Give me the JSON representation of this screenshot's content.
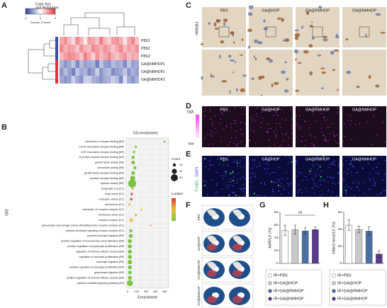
{
  "panel_labels": [
    "A",
    "B",
    "C",
    "D",
    "E",
    "F",
    "G",
    "H"
  ],
  "heatmap": {
    "key_title": [
      "Color Key",
      "and Histogram"
    ],
    "key_axis": "Column Z-Score",
    "key_ticks": [
      -2,
      0,
      2
    ],
    "rows": [
      "PBS1",
      "PBS2",
      "PBS3",
      "GA@NMHOP1",
      "GA@NMHOP2",
      "GA@NMHOP3"
    ],
    "values": [
      [
        0.9,
        1.1,
        0.7,
        0.4,
        1.2,
        0.8,
        0.2,
        1.0,
        0.9,
        0.6,
        1.3,
        0.7,
        0.5,
        1.0,
        1.1,
        0.8,
        0.3,
        0.9,
        1.2,
        0.6
      ],
      [
        1.2,
        0.8,
        1.0,
        0.9,
        0.6,
        1.1,
        0.8,
        0.7,
        1.2,
        1.0,
        0.8,
        1.1,
        0.9,
        0.6,
        0.9,
        1.2,
        0.7,
        1.0,
        0.8,
        1.1
      ],
      [
        0.7,
        1.0,
        1.2,
        1.1,
        0.9,
        0.6,
        1.3,
        0.9,
        0.5,
        1.1,
        0.7,
        0.9,
        1.2,
        0.8,
        0.6,
        0.9,
        1.1,
        0.7,
        0.9,
        0.8
      ],
      [
        -0.8,
        -1.1,
        -0.9,
        -0.6,
        -1.2,
        -0.7,
        -1.0,
        -0.9,
        -0.8,
        -1.3,
        -0.6,
        -1.0,
        -1.1,
        -0.7,
        -0.9,
        -0.8,
        -1.2,
        -0.6,
        -1.0,
        -0.9
      ],
      [
        -1.1,
        -0.7,
        -1.0,
        -1.3,
        -0.6,
        -0.9,
        -0.8,
        -1.2,
        -1.0,
        -0.5,
        -1.1,
        -0.8,
        -0.7,
        -1.2,
        -1.0,
        -0.9,
        -0.6,
        -1.1,
        -0.8,
        -1.0
      ],
      [
        -0.9,
        -1.1,
        -1.0,
        -0.5,
        -0.9,
        -1.1,
        -0.5,
        -0.5,
        -0.8,
        -0.9,
        -1.1,
        -0.9,
        -0.8,
        -0.5,
        -0.7,
        -1.2,
        -0.3,
        -0.9,
        -1.1,
        -0.8
      ]
    ]
  },
  "go": {
    "title": "GO-enrichment",
    "y_label": "GO",
    "x_label": "Enrichment",
    "xlim": [
      0,
      430
    ],
    "xticks": [
      0,
      100,
      200,
      300,
      400
    ],
    "terms": [
      "interleukin-2 receptor binding [MF]",
      "CXCR chemokine receptor binding [MF]",
      "CCR chemokine receptor binding [MF]",
      "G protein-coupled receptor binding [MF]",
      "growth factor activity [MF]",
      "chemokine activity [MF]",
      "growth factor receptor binding [MF]",
      "cytokine receptor binding [MF]",
      "cytokine activity [MF]",
      "phagocytic cup [CC]",
      "Golgi lumen [CC]",
      "endocytic vesicle [CC]",
      "perinucleon [CC]",
      "interleukin-12 receptor complex [CC]",
      "endosome lumen [CC]",
      "receptor complex [CC]",
      "granulocyte macrophage colony-stimulating factor receptor complex [CC]",
      "plasma membrane signaling receptor complex [CC]",
      "myeloid leukocyte migration [BP]",
      "positive regulation of mononuclear cell proliferation [BP]",
      "positive regulation of lymphocyte proliferation [BP]",
      "regulation of immune effector process [BP]",
      "regulation of leukocyte proliferation [BP]",
      "leukocyte migration [BP]",
      "positive regulation of leukocyte proliferation [BP]",
      "granulocyte migration [BP]",
      "positive regulation of immune effector process [BP]",
      "cytokine-mediated signaling pathway [BP]"
    ],
    "enrichment": [
      400,
      90,
      70,
      60,
      60,
      80,
      60,
      55,
      50,
      55,
      45,
      40,
      20,
      150,
      90,
      40,
      250,
      35,
      35,
      25,
      25,
      25,
      25,
      25,
      25,
      25,
      25,
      25
    ],
    "count": [
      4,
      6,
      6,
      10,
      12,
      10,
      12,
      20,
      35,
      5,
      6,
      6,
      4,
      4,
      5,
      12,
      3,
      10,
      14,
      14,
      14,
      14,
      14,
      16,
      14,
      12,
      14,
      24
    ],
    "colors": [
      "#7cc242",
      "#7cc242",
      "#7cc242",
      "#7cc242",
      "#7cc242",
      "#7cc242",
      "#7cc242",
      "#7cc242",
      "#7cc242",
      "#e8a23a",
      "#d94a2e",
      "#d94a2e",
      "#e8a23a",
      "#e8c23a",
      "#e8a23a",
      "#e8c23a",
      "#e8a23a",
      "#7cc242",
      "#7cc242",
      "#7cc242",
      "#7cc242",
      "#7cc242",
      "#7cc242",
      "#7cc242",
      "#7cc242",
      "#7cc242",
      "#7cc242",
      "#7cc242"
    ],
    "size_legend_title": "Count",
    "size_legend": [
      10,
      20,
      30
    ],
    "color_legend_title": "p.adjust"
  },
  "micrographs": {
    "columns": [
      "PBS",
      "GA@HOP",
      "GA@RMHOP",
      "GA@NMHOP"
    ],
    "c_label": "HMGB1",
    "d_high": "high",
    "d_low": "low",
    "e_label": [
      "TUNEL",
      "/DAPI"
    ]
  },
  "groups": {
    "names": [
      "IR+PBS",
      "IR+GA@HOP",
      "IR+GA@RMHOP",
      "IR+GA@NMHOP"
    ],
    "colors": [
      "#ffffff",
      "#c9c9c9",
      "#4a6fa5",
      "#5b3c8c"
    ]
  },
  "g": {
    "y_label": "AAR/LV (%)",
    "ylim": [
      0,
      80
    ],
    "yticks": [
      0,
      20,
      40,
      60,
      80
    ],
    "values": [
      52,
      53,
      51,
      53
    ],
    "errors": [
      8,
      7,
      5,
      4
    ],
    "annotation": "ns"
  },
  "h": {
    "y_label": "Infarct area/LV (%)",
    "ylim": [
      0,
      60
    ],
    "yticks": [
      0,
      20,
      40,
      60
    ],
    "values": [
      45,
      40,
      38,
      11
    ],
    "errors": [
      6,
      4,
      5,
      4
    ]
  }
}
